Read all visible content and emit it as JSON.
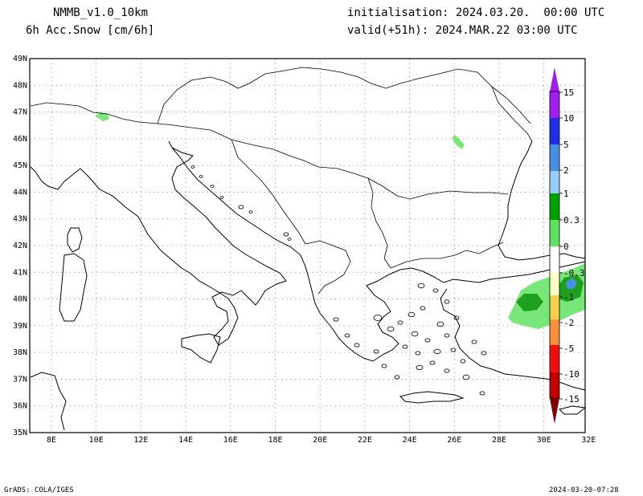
{
  "header": {
    "model": "NMMB_v1.0_10km",
    "variable": "6h Acc.Snow [cm/6h]",
    "init": "initialisation: 2024.03.20.  00:00 UTC",
    "valid": "valid(+51h): 2024.MAR.22 03:00 UTC"
  },
  "footer": {
    "credit": "GrADS: COLA/IGES",
    "timestamp": "2024-03-20-07:28"
  },
  "axes": {
    "lat_labels": [
      "49N",
      "48N",
      "47N",
      "46N",
      "45N",
      "44N",
      "43N",
      "42N",
      "41N",
      "40N",
      "39N",
      "38N",
      "37N",
      "36N",
      "35N"
    ],
    "lon_labels": [
      "8E",
      "10E",
      "12E",
      "14E",
      "16E",
      "18E",
      "20E",
      "22E",
      "24E",
      "26E",
      "28E",
      "30E",
      "32E"
    ]
  },
  "colorbar": {
    "labels": [
      "15",
      "10",
      "5",
      "2",
      "1",
      "0.3",
      "0",
      "-0.3",
      "-1",
      "-2",
      "-5",
      "-10",
      "-15"
    ],
    "colors": {
      "p15": "#a020f0",
      "p10": "#2030e0",
      "p5": "#4a8ee0",
      "p2": "#96ccf5",
      "p1": "#00a000",
      "p03": "#60e060",
      "zero": "#ffffff",
      "n03": "#ffffc8",
      "n1": "#f5d050",
      "n2": "#f59040",
      "n5": "#ee1010",
      "n10": "#c00000",
      "n15": "#800000"
    }
  },
  "snow_colors": {
    "light": "#78e678",
    "medium": "#1ea01e",
    "blue": "#4a8ee0"
  }
}
